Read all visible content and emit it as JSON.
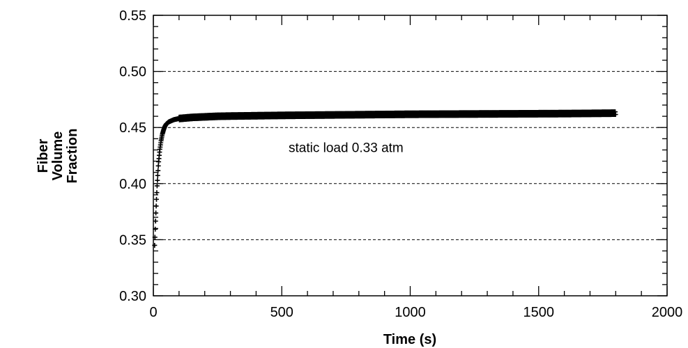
{
  "chart_data": {
    "type": "scatter",
    "xlabel": "Time (s)",
    "ylabel": [
      "Fiber",
      "Volume",
      "Fraction"
    ],
    "xlim": [
      0,
      2000
    ],
    "ylim": [
      0.3,
      0.55
    ],
    "x_ticks": [
      0,
      500,
      1000,
      1500,
      2000
    ],
    "y_ticks": [
      0.3,
      0.35,
      0.4,
      0.45,
      0.5,
      0.55
    ],
    "x_tick_labels": [
      "0",
      "500",
      "1000",
      "1500",
      "2000"
    ],
    "y_tick_labels": [
      "0.30",
      "0.35",
      "0.40",
      "0.45",
      "0.50",
      "0.55"
    ],
    "x_minor_step": 100,
    "y_minor_step": 0.01,
    "dashed_grid_y": [
      0.35,
      0.4,
      0.45,
      0.5
    ],
    "annotation": {
      "text": "static load 0.33 atm",
      "x": 750,
      "y": 0.428
    },
    "marker_color": "#000000",
    "series": [
      {
        "marker": "plus",
        "x": [
          5,
          10,
          15,
          20,
          25,
          30,
          35,
          40,
          45,
          50,
          60,
          70,
          80,
          90,
          100,
          125,
          150,
          200,
          250,
          300,
          400,
          500,
          600,
          700,
          800,
          900,
          1000,
          1100,
          1200,
          1300,
          1400,
          1500,
          1600,
          1700,
          1800
        ],
        "y": [
          0.345,
          0.375,
          0.4,
          0.418,
          0.43,
          0.438,
          0.444,
          0.448,
          0.451,
          0.453,
          0.455,
          0.456,
          0.457,
          0.4575,
          0.458,
          0.4585,
          0.459,
          0.4595,
          0.46,
          0.4602,
          0.4605,
          0.4608,
          0.461,
          0.4612,
          0.4614,
          0.4616,
          0.4618,
          0.4619,
          0.462,
          0.4621,
          0.4622,
          0.4623,
          0.4624,
          0.4626,
          0.4628
        ]
      }
    ]
  }
}
